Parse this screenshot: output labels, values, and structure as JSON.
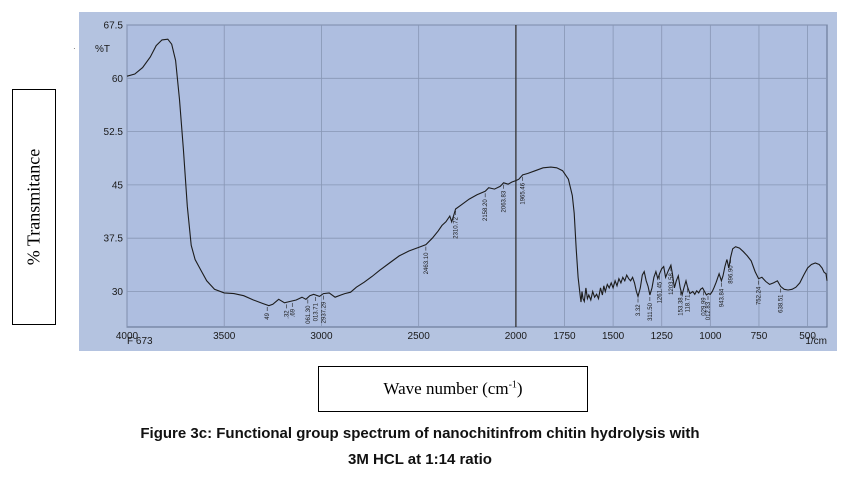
{
  "chart_data": {
    "type": "line",
    "inner_ylabel": "%T",
    "inner_xunit": "1/cm",
    "instrument_id": "F 673",
    "ylabel": "% Transmitance",
    "xlabel_main": "Wave number (cm",
    "xlabel_sup": "-1",
    "xlabel_close": ")",
    "xlim": [
      4000,
      400
    ],
    "ylim": [
      25,
      67.5
    ],
    "xticks": [
      4000,
      3500,
      3000,
      2500,
      2000,
      1750,
      1500,
      1250,
      1000,
      750,
      500
    ],
    "xtick_labels": [
      "4000",
      "3500",
      "3000",
      "2500",
      "2000",
      "1750",
      "1500",
      "1250",
      "1000",
      "750",
      "500"
    ],
    "yticks": [
      30,
      37.5,
      45,
      52.5,
      60,
      67.5
    ],
    "ytick_labels": [
      "30",
      "37.5",
      "45",
      "52.5",
      "60",
      "67.5"
    ],
    "grid": true,
    "vertical_marker_x": 2000,
    "series": [
      {
        "color": "#1c1c1c",
        "points": [
          [
            4000,
            60.3
          ],
          [
            3960,
            60.6
          ],
          [
            3920,
            61.5
          ],
          [
            3880,
            63.0
          ],
          [
            3850,
            64.6
          ],
          [
            3820,
            65.4
          ],
          [
            3790,
            65.5
          ],
          [
            3770,
            64.8
          ],
          [
            3750,
            62.5
          ],
          [
            3730,
            57.0
          ],
          [
            3710,
            50.0
          ],
          [
            3690,
            42.0
          ],
          [
            3670,
            36.5
          ],
          [
            3650,
            34.5
          ],
          [
            3620,
            33.0
          ],
          [
            3590,
            31.5
          ],
          [
            3550,
            30.3
          ],
          [
            3500,
            29.8
          ],
          [
            3450,
            29.7
          ],
          [
            3400,
            29.4
          ],
          [
            3350,
            28.8
          ],
          [
            3300,
            28.3
          ],
          [
            3270,
            28.0
          ],
          [
            3250,
            28.2
          ],
          [
            3220,
            28.9
          ],
          [
            3190,
            28.4
          ],
          [
            3160,
            28.6
          ],
          [
            3130,
            28.8
          ],
          [
            3100,
            29.2
          ],
          [
            3080,
            28.9
          ],
          [
            3060,
            29.4
          ],
          [
            3040,
            29.6
          ],
          [
            3010,
            29.3
          ],
          [
            2990,
            29.7
          ],
          [
            2960,
            29.8
          ],
          [
            2930,
            29.2
          ],
          [
            2900,
            29.5
          ],
          [
            2880,
            29.7
          ],
          [
            2850,
            29.9
          ],
          [
            2820,
            30.6
          ],
          [
            2780,
            31.3
          ],
          [
            2740,
            32.1
          ],
          [
            2700,
            33.0
          ],
          [
            2650,
            34.0
          ],
          [
            2600,
            35.0
          ],
          [
            2550,
            35.7
          ],
          [
            2500,
            36.2
          ],
          [
            2463,
            36.6
          ],
          [
            2430,
            37.5
          ],
          [
            2400,
            38.5
          ],
          [
            2380,
            39.3
          ],
          [
            2360,
            39.8
          ],
          [
            2340,
            40.6
          ],
          [
            2330,
            39.8
          ],
          [
            2320,
            40.7
          ],
          [
            2310,
            41.6
          ],
          [
            2280,
            42.2
          ],
          [
            2240,
            43.0
          ],
          [
            2200,
            43.6
          ],
          [
            2158,
            44.1
          ],
          [
            2140,
            44.6
          ],
          [
            2110,
            44.4
          ],
          [
            2080,
            44.8
          ],
          [
            2063,
            45.3
          ],
          [
            2040,
            45.1
          ],
          [
            2020,
            45.4
          ],
          [
            2000,
            45.6
          ],
          [
            1985,
            45.8
          ],
          [
            1965,
            46.4
          ],
          [
            1940,
            46.6
          ],
          [
            1900,
            47.0
          ],
          [
            1860,
            47.4
          ],
          [
            1820,
            47.5
          ],
          [
            1790,
            47.4
          ],
          [
            1760,
            47.0
          ],
          [
            1730,
            45.8
          ],
          [
            1710,
            43.5
          ],
          [
            1700,
            41.0
          ],
          [
            1690,
            36.0
          ],
          [
            1680,
            32.0
          ],
          [
            1670,
            29.5
          ],
          [
            1665,
            28.5
          ],
          [
            1660,
            30.0
          ],
          [
            1655,
            29.0
          ],
          [
            1648,
            28.6
          ],
          [
            1640,
            30.5
          ],
          [
            1632,
            29.0
          ],
          [
            1625,
            29.5
          ],
          [
            1615,
            28.8
          ],
          [
            1605,
            30.0
          ],
          [
            1595,
            29.2
          ],
          [
            1585,
            29.6
          ],
          [
            1575,
            29.0
          ],
          [
            1565,
            30.5
          ],
          [
            1555,
            29.5
          ],
          [
            1548,
            30.8
          ],
          [
            1540,
            30.0
          ],
          [
            1530,
            31.0
          ],
          [
            1520,
            30.5
          ],
          [
            1510,
            31.2
          ],
          [
            1500,
            30.5
          ],
          [
            1490,
            31.5
          ],
          [
            1480,
            30.8
          ],
          [
            1470,
            31.8
          ],
          [
            1460,
            31.2
          ],
          [
            1450,
            32.0
          ],
          [
            1440,
            31.5
          ],
          [
            1430,
            32.3
          ],
          [
            1420,
            31.8
          ],
          [
            1410,
            31.5
          ],
          [
            1400,
            32.0
          ],
          [
            1390,
            31.2
          ],
          [
            1380,
            30.0
          ],
          [
            1372,
            29.3
          ],
          [
            1360,
            30.5
          ],
          [
            1350,
            32.3
          ],
          [
            1340,
            32.8
          ],
          [
            1330,
            31.5
          ],
          [
            1320,
            30.7
          ],
          [
            1311,
            29.5
          ],
          [
            1300,
            30.5
          ],
          [
            1290,
            32.0
          ],
          [
            1280,
            32.8
          ],
          [
            1270,
            31.8
          ],
          [
            1261,
            32.5
          ],
          [
            1250,
            33.2
          ],
          [
            1240,
            33.5
          ],
          [
            1230,
            32.0
          ],
          [
            1215,
            33.0
          ],
          [
            1203,
            33.7
          ],
          [
            1195,
            32.5
          ],
          [
            1185,
            30.5
          ],
          [
            1175,
            31.5
          ],
          [
            1165,
            32.2
          ],
          [
            1155,
            30.5
          ],
          [
            1145,
            29.5
          ],
          [
            1136,
            30.5
          ],
          [
            1125,
            31.5
          ],
          [
            1118,
            30.7
          ],
          [
            1105,
            29.7
          ],
          [
            1090,
            30.0
          ],
          [
            1080,
            29.6
          ],
          [
            1070,
            30.1
          ],
          [
            1060,
            29.8
          ],
          [
            1050,
            30.3
          ],
          [
            1040,
            30.5
          ],
          [
            1030,
            30.0
          ],
          [
            1020,
            29.5
          ],
          [
            1010,
            29.7
          ],
          [
            1000,
            29.6
          ],
          [
            990,
            30.0
          ],
          [
            980,
            30.6
          ],
          [
            970,
            31.3
          ],
          [
            955,
            32.5
          ],
          [
            943,
            31.5
          ],
          [
            935,
            32.2
          ],
          [
            925,
            33.5
          ],
          [
            915,
            34.5
          ],
          [
            905,
            33.3
          ],
          [
            896,
            34.8
          ],
          [
            885,
            36.0
          ],
          [
            870,
            36.3
          ],
          [
            850,
            36.1
          ],
          [
            830,
            35.6
          ],
          [
            810,
            35.0
          ],
          [
            790,
            34.3
          ],
          [
            770,
            32.8
          ],
          [
            752,
            31.8
          ],
          [
            735,
            32.0
          ],
          [
            715,
            31.4
          ],
          [
            695,
            31.0
          ],
          [
            675,
            31.2
          ],
          [
            655,
            31.5
          ],
          [
            638,
            30.7
          ],
          [
            620,
            30.3
          ],
          [
            600,
            30.2
          ],
          [
            580,
            30.3
          ],
          [
            560,
            30.6
          ],
          [
            540,
            31.2
          ],
          [
            520,
            32.3
          ],
          [
            500,
            33.3
          ],
          [
            480,
            33.8
          ],
          [
            460,
            34.0
          ],
          [
            440,
            33.8
          ],
          [
            425,
            33.3
          ],
          [
            415,
            32.7
          ],
          [
            405,
            32.5
          ],
          [
            400,
            31.5
          ]
        ]
      }
    ],
    "peak_labels": [
      {
        "x": 3279,
        "text": "49"
      },
      {
        "x": 3180,
        "text": ".32"
      },
      {
        "x": 3150,
        "text": ".69"
      },
      {
        "x": 3070,
        "text": "061.30"
      },
      {
        "x": 3030,
        "text": "013.71"
      },
      {
        "x": 2990,
        "text": "2937.29"
      },
      {
        "x": 2463,
        "text": "2463.10"
      },
      {
        "x": 2310,
        "text": "2310.72"
      },
      {
        "x": 2158,
        "text": "2158.20"
      },
      {
        "x": 2063,
        "text": "2063.83"
      },
      {
        "x": 1965,
        "text": "1965.46"
      },
      {
        "x": 1372,
        "text": "3.32"
      },
      {
        "x": 1311,
        "text": "311.50"
      },
      {
        "x": 1261,
        "text": "1261.45"
      },
      {
        "x": 1203,
        "text": "1203.58"
      },
      {
        "x": 1153,
        "text": "153.38"
      },
      {
        "x": 1118,
        "text": "118.71"
      },
      {
        "x": 1036,
        "text": "029.99"
      },
      {
        "x": 1012,
        "text": "012.83"
      },
      {
        "x": 943,
        "text": "943.84"
      },
      {
        "x": 896,
        "text": "896.90"
      },
      {
        "x": 752,
        "text": "752.24"
      },
      {
        "x": 638,
        "text": "638.51"
      }
    ]
  },
  "caption": {
    "line1": "Figure 3c: Functional group spectrum of nanochitinfrom chitin hydrolysis with",
    "line2": "3M HCL at 1:14 ratio"
  },
  "colors": {
    "panel_bg": "#b4c3e0",
    "plot_bg": "#aebee0",
    "grid": "#8796b4",
    "trace": "#1c1c1c"
  }
}
